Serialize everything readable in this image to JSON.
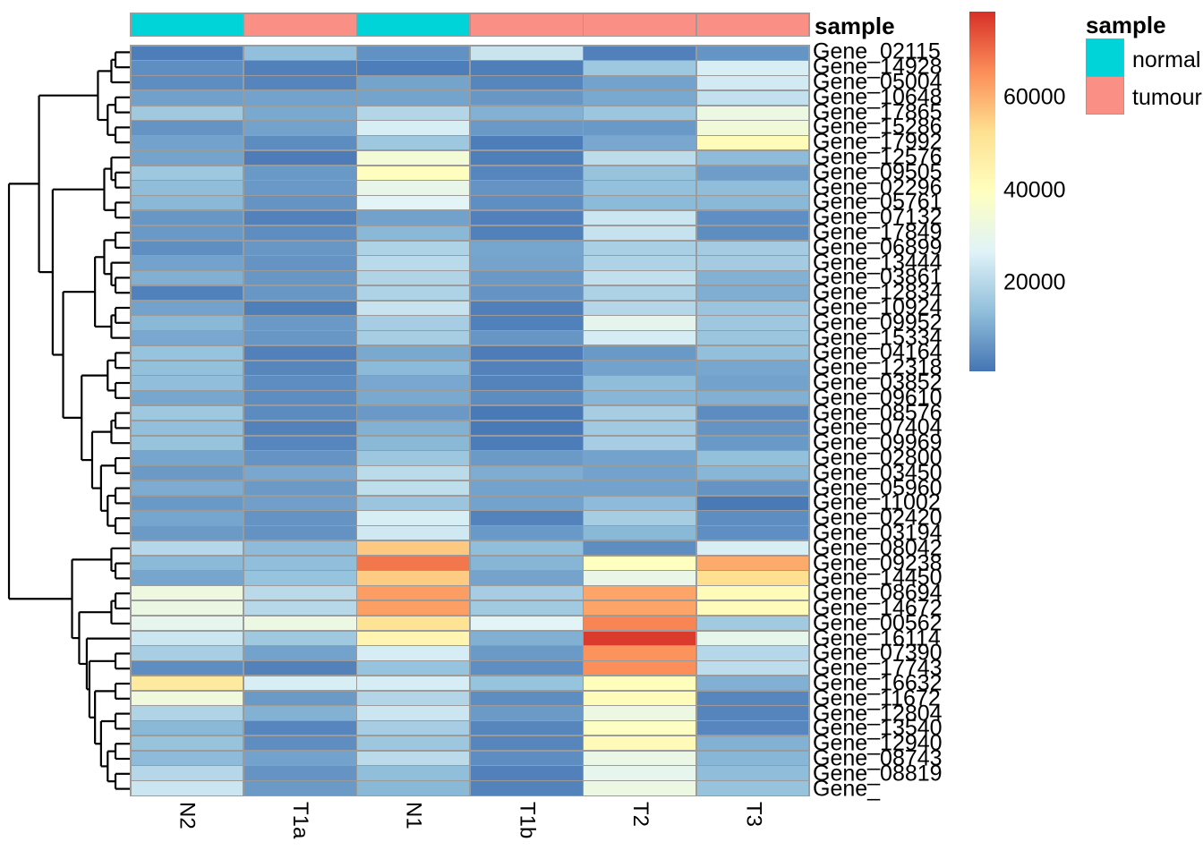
{
  "chart_data": {
    "type": "heatmap",
    "columns": [
      "N2",
      "T1a",
      "N1",
      "T1b",
      "T2",
      "T3"
    ],
    "rows": [
      "Gene_02115",
      "Gene_14928",
      "Gene_05004",
      "Gene_10648",
      "Gene_17865",
      "Gene_15286",
      "Gene_17992",
      "Gene_12576",
      "Gene_09505",
      "Gene_02296",
      "Gene_05761",
      "Gene_07132",
      "Gene_17849",
      "Gene_06899",
      "Gene_13444",
      "Gene_03861",
      "Gene_12834",
      "Gene_10924",
      "Gene_09952",
      "Gene_15334",
      "Gene_04164",
      "Gene_12318",
      "Gene_03852",
      "Gene_09610",
      "Gene_08576",
      "Gene_07404",
      "Gene_09969",
      "Gene_02800",
      "Gene_03450",
      "Gene_05960",
      "Gene_11002",
      "Gene_02420",
      "Gene_03194",
      "Gene_08042",
      "Gene_09238",
      "Gene_14450",
      "Gene_08694",
      "Gene_14672",
      "Gene_00562",
      "Gene_16114",
      "Gene_07390",
      "Gene_17743",
      "Gene_16632",
      "Gene_11672",
      "Gene_12804",
      "Gene_13540",
      "Gene_12940",
      "Gene_08743",
      "Gene_08819",
      "Gene_"
    ],
    "values": [
      [
        2500,
        14000,
        6000,
        23000,
        3000,
        6500
      ],
      [
        5500,
        3000,
        2500,
        2700,
        16000,
        25500
      ],
      [
        5300,
        3800,
        9000,
        4000,
        8800,
        24500
      ],
      [
        8500,
        8800,
        9000,
        7000,
        10000,
        22000
      ],
      [
        16300,
        10000,
        19500,
        11500,
        15700,
        32000
      ],
      [
        6300,
        8800,
        25500,
        7300,
        7200,
        34000
      ],
      [
        8800,
        5000,
        16000,
        2500,
        9800,
        41000
      ],
      [
        9000,
        2300,
        34500,
        2700,
        21000,
        13200
      ],
      [
        16000,
        7200,
        40000,
        3900,
        15000,
        8000
      ],
      [
        13600,
        7300,
        30000,
        6300,
        14200,
        13600
      ],
      [
        12800,
        6300,
        27500,
        5500,
        13100,
        12800
      ],
      [
        7000,
        3300,
        8700,
        3000,
        23500,
        5500
      ],
      [
        7200,
        5300,
        12800,
        3100,
        22500,
        5300
      ],
      [
        5500,
        7000,
        18800,
        9300,
        17800,
        17000
      ],
      [
        8800,
        6200,
        20500,
        9100,
        18800,
        17000
      ],
      [
        11300,
        7000,
        19000,
        7300,
        21800,
        11500
      ],
      [
        3100,
        6900,
        18900,
        6300,
        18500,
        11000
      ],
      [
        8800,
        2700,
        22800,
        2800,
        19700,
        15500
      ],
      [
        12800,
        7300,
        17300,
        3100,
        29000,
        16200
      ],
      [
        9800,
        7000,
        17500,
        6700,
        25000,
        15500
      ],
      [
        14800,
        3000,
        10000,
        2300,
        7200,
        14000
      ],
      [
        14300,
        4000,
        13100,
        3300,
        8800,
        9500
      ],
      [
        13800,
        5200,
        9800,
        3500,
        13500,
        8800
      ],
      [
        9500,
        5300,
        10000,
        5100,
        12300,
        11300
      ],
      [
        16000,
        4900,
        7300,
        1800,
        17500,
        5100
      ],
      [
        14000,
        3300,
        11400,
        1700,
        16500,
        6400
      ],
      [
        15000,
        3900,
        12800,
        2400,
        17300,
        7200
      ],
      [
        9300,
        6400,
        15800,
        7400,
        8800,
        14300
      ],
      [
        7400,
        9800,
        20800,
        10800,
        8800,
        12300
      ],
      [
        10500,
        7400,
        21500,
        8800,
        8800,
        6300
      ],
      [
        7200,
        8400,
        15500,
        8800,
        13300,
        1800
      ],
      [
        9400,
        6200,
        25600,
        3500,
        17500,
        5300
      ],
      [
        7400,
        6100,
        24200,
        7200,
        12800,
        5500
      ],
      [
        20000,
        13200,
        56400,
        13800,
        5300,
        25600
      ],
      [
        12900,
        13900,
        68600,
        12200,
        39700,
        60900
      ],
      [
        9400,
        14800,
        56000,
        9100,
        30500,
        52700
      ],
      [
        32500,
        20700,
        63000,
        17300,
        61800,
        41200
      ],
      [
        31500,
        20200,
        62800,
        16600,
        61800,
        40800
      ],
      [
        29300,
        31800,
        51500,
        27500,
        66800,
        16600
      ],
      [
        23500,
        16300,
        43800,
        11300,
        77000,
        29800
      ],
      [
        17600,
        8800,
        25300,
        7400,
        64800,
        20000
      ],
      [
        5300,
        3300,
        14800,
        5500,
        65500,
        21300
      ],
      [
        48500,
        25500,
        25300,
        14800,
        40200,
        11300
      ],
      [
        33500,
        7400,
        19500,
        5300,
        41000,
        3900
      ],
      [
        19000,
        11400,
        23500,
        7400,
        32000,
        3800
      ],
      [
        12800,
        3900,
        17300,
        4000,
        38800,
        3900
      ],
      [
        15000,
        5300,
        15800,
        4000,
        42000,
        11500
      ],
      [
        13300,
        8800,
        20800,
        5300,
        30800,
        12300
      ],
      [
        20000,
        6200,
        13900,
        3000,
        29300,
        13700
      ],
      [
        23500,
        7400,
        12800,
        3500,
        31800,
        15000
      ]
    ],
    "colorscale": {
      "min": 1000,
      "max": 78500,
      "ticks": [
        20000,
        40000,
        60000
      ],
      "palette": [
        "#4575B4",
        "#91BFDB",
        "#E0F3F8",
        "#FFFFBF",
        "#FEE090",
        "#FC8D59",
        "#D73027"
      ]
    },
    "column_annotation": {
      "title": "sample",
      "values": [
        "normal",
        "tumour",
        "normal",
        "tumour",
        "tumour",
        "tumour"
      ]
    },
    "legend": {
      "title": "sample",
      "entries": [
        {
          "label": "normal",
          "color": "#00D4D8"
        },
        {
          "label": "tumour",
          "color": "#FA9085"
        }
      ]
    },
    "row_dendrogram": [
      [
        [
          [
            [
              0,
              1
            ],
            2
          ],
          [
            [
              3,
              4
            ],
            [
              5,
              6
            ]
          ]
        ],
        [
          [
            [
              7,
              [
                8,
                9
              ]
            ],
            [
              10,
              11
            ]
          ],
          [
            [
              [
                [
                  12,
                  13
                ],
                [
                  14,
                  [
                    15,
                    16
                  ]
                ]
              ],
              [
                [
                  17,
                  18
                ],
                19
              ]
            ],
            [
              [
                [
                  20,
                  21
                ],
                [
                  22,
                  23
                ]
              ],
              [
                [
                  [
                    24,
                    25
                  ],
                  26
                ],
                [
                  [
                    27,
                    28
                  ],
                  [
                    [
                      29,
                      30
                    ],
                    [
                      31,
                      32
                    ]
                  ]
                ]
              ]
            ]
          ]
        ]
      ],
      [
        [
          33,
          [
            34,
            35
          ]
        ],
        [
          [
            [
              36,
              37
            ],
            38
          ],
          [
            39,
            [
              [
                40,
                41
              ],
              [
                [
                  42,
                  43
                ],
                [
                  [
                    44,
                    45
                  ],
                  [
                    [
                      46,
                      47
                    ],
                    [
                      48,
                      49
                    ]
                  ]
                ]
              ]
            ]
          ]
        ]
      ]
    ],
    "grid_color": "#9b9b9b"
  }
}
